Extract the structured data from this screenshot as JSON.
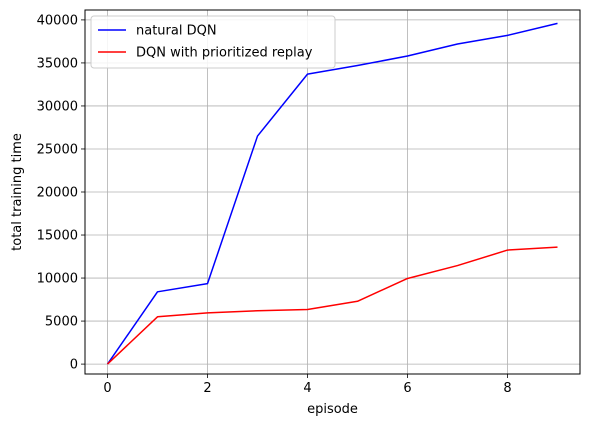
{
  "chart_data": {
    "type": "line",
    "xlabel": "episode",
    "ylabel": "total training time",
    "xlim": [
      -0.45,
      9.45
    ],
    "ylim": [
      -1150,
      41150
    ],
    "xticks": [
      0,
      2,
      4,
      6,
      8
    ],
    "yticks": [
      0,
      5000,
      10000,
      15000,
      20000,
      25000,
      30000,
      35000,
      40000
    ],
    "xtick_labels": [
      "0",
      "2",
      "4",
      "6",
      "8"
    ],
    "ytick_labels": [
      "0",
      "5000",
      "10000",
      "15000",
      "20000",
      "25000",
      "30000",
      "35000",
      "40000"
    ],
    "grid": true,
    "legend_position": "top-left",
    "x": [
      0,
      1,
      2,
      3,
      4,
      5,
      6,
      7,
      8,
      9
    ],
    "series": [
      {
        "name": "natural DQN",
        "color": "#0000ff",
        "values": [
          0,
          8400,
          9350,
          26500,
          33700,
          34700,
          35800,
          37200,
          38200,
          39600
        ]
      },
      {
        "name": "DQN with prioritized replay",
        "color": "#ff0000",
        "values": [
          0,
          5500,
          5950,
          6200,
          6350,
          7300,
          9950,
          11450,
          13250,
          13600
        ]
      }
    ]
  }
}
